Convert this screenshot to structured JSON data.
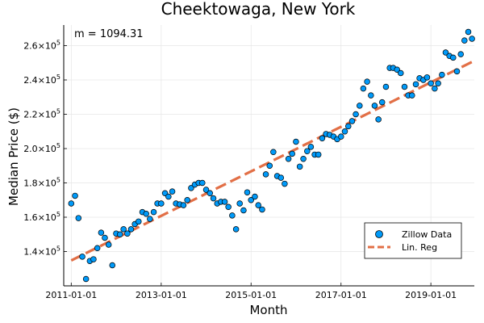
{
  "chart_data": {
    "type": "scatter",
    "title": "Cheektowaga, New York",
    "xlabel": "Month",
    "ylabel": "Median Price ($)",
    "x_range": [
      "2010-11-01",
      "2019-12-20"
    ],
    "y_range": [
      120000,
      272000
    ],
    "grid": true,
    "legend_position": "bottom-right",
    "annotation": "m = 1094.31",
    "x_ticks": [
      {
        "value": "2011-01-01",
        "label": "2011-01-01"
      },
      {
        "value": "2013-01-01",
        "label": "2013-01-01"
      },
      {
        "value": "2015-01-01",
        "label": "2015-01-01"
      },
      {
        "value": "2017-01-01",
        "label": "2017-01-01"
      },
      {
        "value": "2019-01-01",
        "label": "2019-01-01"
      }
    ],
    "y_ticks": [
      {
        "value": 140000,
        "mantissa": "1.4",
        "base": "×10",
        "exp": "5"
      },
      {
        "value": 160000,
        "mantissa": "1.6",
        "base": "×10",
        "exp": "5"
      },
      {
        "value": 180000,
        "mantissa": "1.8",
        "base": "×10",
        "exp": "5"
      },
      {
        "value": 200000,
        "mantissa": "2.0",
        "base": "×10",
        "exp": "5"
      },
      {
        "value": 220000,
        "mantissa": "2.2",
        "base": "×10",
        "exp": "5"
      },
      {
        "value": 240000,
        "mantissa": "2.4",
        "base": "×10",
        "exp": "5"
      },
      {
        "value": 260000,
        "mantissa": "2.6",
        "base": "×10",
        "exp": "5"
      }
    ],
    "series": [
      {
        "name": "Zillow Data",
        "kind": "scatter",
        "color": "#009af9",
        "start": "2011-01",
        "values": [
          168000,
          172500,
          159500,
          137000,
          124000,
          134500,
          135500,
          142000,
          151000,
          148000,
          144000,
          132000,
          150500,
          150000,
          153000,
          150500,
          153000,
          156000,
          157500,
          163000,
          162000,
          159000,
          163000,
          168000,
          168000,
          174000,
          172000,
          175000,
          168000,
          167500,
          167000,
          170000,
          177000,
          179000,
          180000,
          180000,
          176000,
          174000,
          171000,
          168000,
          169000,
          169000,
          166000,
          161000,
          153000,
          168000,
          164000,
          174500,
          170000,
          172000,
          167000,
          164500,
          185000,
          190000,
          198000,
          184000,
          183000,
          179500,
          194000,
          197000,
          204000,
          189500,
          194000,
          198500,
          201000,
          196500,
          196500,
          206000,
          208500,
          208000,
          207000,
          205500,
          207000,
          210000,
          213000,
          216000,
          220000,
          225000,
          235000,
          239000,
          231000,
          225000,
          217000,
          227000,
          236000,
          247000,
          247000,
          246000,
          244000,
          236000,
          231000,
          231000,
          237500,
          241000,
          240000,
          241500,
          238000,
          235000,
          238000,
          243000,
          256000,
          254000,
          253000,
          245000,
          255000,
          263000,
          268000,
          264000
        ]
      },
      {
        "name": "Lin. Reg",
        "kind": "line",
        "color": "#e26f46",
        "dash": "dashed",
        "slope": 1094.31,
        "start_point": {
          "x": "2011-01",
          "y": 134800
        },
        "end_point": {
          "x": "2019-12",
          "y": 250500
        }
      }
    ]
  }
}
